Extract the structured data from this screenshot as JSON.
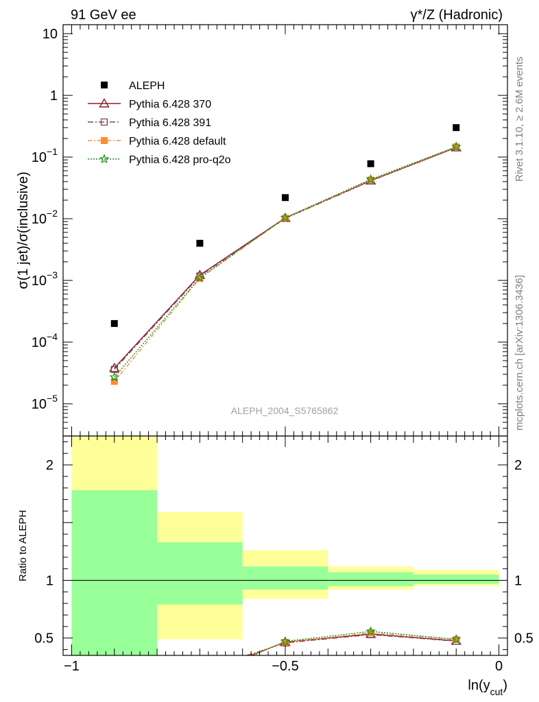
{
  "header": {
    "left": "91 GeV ee",
    "right": "γ*/Z (Hadronic)"
  },
  "watermark": "ALEPH_2004_S5765862",
  "side_top": "Rivet 3.1.10, ≥ 2.6M events",
  "side_bottom": "mcplots.cern.ch [arXiv:1306.3436]",
  "chart_data": [
    {
      "type": "scatter",
      "panel": "main",
      "ylabel": "σ(1 jet)/σ(inclusive)",
      "yscale": "log",
      "ylim": [
        3e-06,
        14
      ],
      "xlim": [
        -1.02,
        0.02
      ],
      "x": [
        -0.9,
        -0.7,
        -0.5,
        -0.3,
        -0.1
      ],
      "yticks": [
        {
          "v": 1e-05,
          "label": "10",
          "exp": "−5"
        },
        {
          "v": 0.0001,
          "label": "10",
          "exp": "−4"
        },
        {
          "v": 0.001,
          "label": "10",
          "exp": "−3"
        },
        {
          "v": 0.01,
          "label": "10",
          "exp": "−2"
        },
        {
          "v": 0.1,
          "label": "10",
          "exp": "−1"
        },
        {
          "v": 1,
          "label": "1",
          "exp": ""
        },
        {
          "v": 10,
          "label": "10",
          "exp": ""
        }
      ],
      "legend_position": "top-left",
      "series": [
        {
          "name": "ALEPH",
          "marker": "square-filled",
          "color": "#000000",
          "dash": "",
          "values": [
            0.0002,
            0.004,
            0.022,
            0.078,
            0.3
          ]
        },
        {
          "name": "Pythia 6.428 370",
          "marker": "triangle-open",
          "color": "#8b1a2b",
          "dash": "",
          "values": [
            3.8e-05,
            0.00122,
            0.0103,
            0.0415,
            0.143
          ]
        },
        {
          "name": "Pythia 6.428 391",
          "marker": "square-open",
          "color": "#7a4a5a",
          "dash": "8,3,2,3",
          "values": [
            3.6e-05,
            0.00118,
            0.0101,
            0.041,
            0.142
          ]
        },
        {
          "name": "Pythia 6.428 default",
          "marker": "square-filled",
          "color": "#ff8c33",
          "dash": "6,3,2,3",
          "values": [
            2.3e-05,
            0.00108,
            0.0102,
            0.0425,
            0.146
          ]
        },
        {
          "name": "Pythia 6.428 pro-q2o",
          "marker": "star",
          "color": "#1a8f1a",
          "dash": "2,2",
          "values": [
            2.7e-05,
            0.0011,
            0.0104,
            0.0435,
            0.147
          ]
        }
      ]
    },
    {
      "type": "line",
      "panel": "ratio",
      "ylabel": "Ratio to ALEPH",
      "xlabel": "ln(y",
      "xlabel_sub": "cut",
      "xlabel_end": ")",
      "ylim": [
        0.35,
        2.25
      ],
      "xlim": [
        -1.02,
        0.02
      ],
      "xticks": [
        {
          "v": -1,
          "label": "−1"
        },
        {
          "v": -0.5,
          "label": "−0.5"
        },
        {
          "v": 0,
          "label": "0"
        }
      ],
      "yticks": [
        {
          "v": 0.5,
          "label": "0.5"
        },
        {
          "v": 1,
          "label": "1"
        },
        {
          "v": 2,
          "label": "2"
        }
      ],
      "bands": [
        {
          "x0": -1.0,
          "x1": -0.8,
          "yellow": [
            0.0,
            2.3
          ],
          "green": [
            0.2,
            1.78
          ]
        },
        {
          "x0": -0.8,
          "x1": -0.6,
          "yellow": [
            0.49,
            1.59
          ],
          "green": [
            0.79,
            1.33
          ]
        },
        {
          "x0": -0.6,
          "x1": -0.4,
          "yellow": [
            0.84,
            1.26
          ],
          "green": [
            0.92,
            1.12
          ]
        },
        {
          "x0": -0.4,
          "x1": -0.2,
          "yellow": [
            0.92,
            1.12
          ],
          "green": [
            0.95,
            1.07
          ]
        },
        {
          "x0": -0.2,
          "x1": 0.0,
          "yellow": [
            0.95,
            1.09
          ],
          "green": [
            0.97,
            1.05
          ]
        }
      ],
      "series": [
        {
          "name": "Pythia 6.428 370",
          "marker": "triangle-open",
          "color": "#8b1a2b",
          "dash": "",
          "x": [
            -0.58,
            -0.5,
            -0.3,
            -0.1
          ],
          "values": [
            0.35,
            0.465,
            0.535,
            0.476
          ]
        },
        {
          "name": "Pythia 6.428 391",
          "marker": "square-open",
          "color": "#7a4a5a",
          "dash": "8,3,2,3",
          "x": [
            -0.59,
            -0.5,
            -0.3,
            -0.1
          ],
          "values": [
            0.35,
            0.458,
            0.53,
            0.473
          ]
        },
        {
          "name": "Pythia 6.428 default",
          "marker": "square-filled",
          "color": "#ff8c33",
          "dash": "6,3,2,3",
          "x": [
            -0.585,
            -0.5,
            -0.3,
            -0.1
          ],
          "values": [
            0.35,
            0.463,
            0.545,
            0.487
          ]
        },
        {
          "name": "Pythia 6.428 pro-q2o",
          "marker": "star",
          "color": "#1a8f1a",
          "dash": "2,2",
          "x": [
            -0.575,
            -0.5,
            -0.3,
            -0.1
          ],
          "values": [
            0.35,
            0.472,
            0.558,
            0.49
          ]
        }
      ]
    }
  ]
}
